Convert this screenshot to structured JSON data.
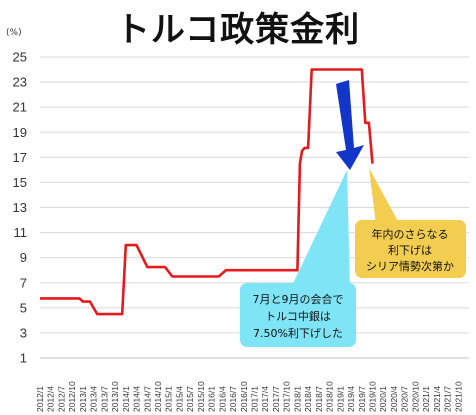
{
  "chart_data": {
    "type": "line",
    "title": "トルコ政策金利",
    "ylabel": "(%)",
    "ylim": [
      1,
      25
    ],
    "yticks": [
      "1",
      "3",
      "5",
      "7",
      "9",
      "11",
      "13",
      "15",
      "17",
      "19",
      "21",
      "23",
      "25"
    ],
    "x_labels": [
      "2012/1",
      "2012/4",
      "2012/7",
      "2012/10",
      "2013/1",
      "2013/4",
      "2013/7",
      "2013/10",
      "2014/1",
      "2014/4",
      "2014/7",
      "2014/10",
      "2015/1",
      "2015/4",
      "2015/7",
      "2015/10",
      "2016/1",
      "2016/4",
      "2016/7",
      "2016/10",
      "2017/1",
      "2017/4",
      "2017/7",
      "2017/10",
      "2018/1",
      "2018/4",
      "2018/7",
      "2018/10",
      "2019/1",
      "2019/4",
      "2019/7",
      "2019/10",
      "2020/1",
      "2020/4",
      "2020/7",
      "2020/10",
      "2021/1",
      "2021/4",
      "2021/7",
      "2021/10"
    ],
    "grid": true,
    "line_color": "#e41a1c",
    "series": [
      {
        "points": [
          [
            0,
            5.75
          ],
          [
            11,
            5.75
          ],
          [
            12,
            5.5
          ],
          [
            14,
            5.5
          ],
          [
            16,
            4.5
          ],
          [
            23,
            4.5
          ],
          [
            24,
            10.0
          ],
          [
            27,
            10.0
          ],
          [
            30,
            8.25
          ],
          [
            35,
            8.25
          ],
          [
            37,
            7.5
          ],
          [
            38,
            7.5
          ],
          [
            49,
            7.5
          ],
          [
            50,
            7.5
          ],
          [
            52,
            8.0
          ],
          [
            71,
            8.0
          ],
          [
            72,
            8.0
          ],
          [
            72.7,
            16.5
          ],
          [
            73.3,
            17.5
          ],
          [
            74,
            17.75
          ],
          [
            75,
            17.75
          ],
          [
            76,
            24.0
          ],
          [
            90,
            24.0
          ],
          [
            91,
            19.75
          ],
          [
            92,
            19.75
          ],
          [
            93,
            16.5
          ]
        ]
      }
    ],
    "annotations": [
      {
        "name": "blue",
        "lines": [
          "7月と9月の会合で",
          "トルコ中銀は",
          "7.50%利下げした"
        ],
        "fill": "#7fe4f5"
      },
      {
        "name": "yellow",
        "lines": [
          "年内のさらなる",
          "利下げは",
          "シリア情勢次第か"
        ],
        "fill": "#f2cd4f"
      }
    ],
    "arrow_color": "#1237c8"
  }
}
